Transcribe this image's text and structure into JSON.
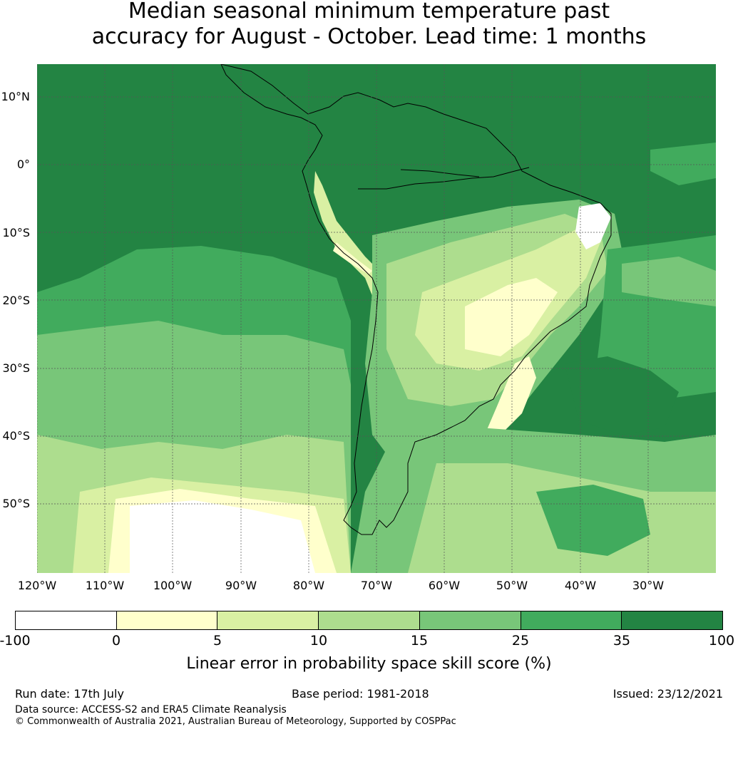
{
  "title": {
    "line1": "Median seasonal minimum temperature past",
    "line2": "accuracy for August - October. Lead time: 1 months"
  },
  "map": {
    "lat_labels": [
      "10°N",
      "0°",
      "10°S",
      "20°S",
      "30°S",
      "40°S",
      "50°S"
    ],
    "lon_labels": [
      "120°W",
      "110°W",
      "100°W",
      "90°W",
      "80°W",
      "70°W",
      "60°W",
      "50°W",
      "40°W",
      "30°W"
    ],
    "region": "South America",
    "colors": {
      "ocean_dominant": "#238443",
      "land_outline": "#000000",
      "gridline": "#555555"
    }
  },
  "colorbar": {
    "label": "Linear error in probability space skill score (%)",
    "ticks": [
      "-100",
      "0",
      "5",
      "10",
      "15",
      "25",
      "35",
      "100"
    ],
    "colors": [
      "#ffffff",
      "#ffffcc",
      "#d9f0a3",
      "#addd8e",
      "#78c679",
      "#41ab5d",
      "#238443"
    ]
  },
  "footer": {
    "run_date": "Run date: 17th July",
    "base_period": "Base period: 1981-2018",
    "issued": "Issued: 23/12/2021",
    "data_source": "Data source: ACCESS-S2 and ERA5 Climate Reanalysis",
    "copyright": "© Commonwealth of Australia 2021, Australian Bureau of Meteorology, Supported by COSPPac"
  }
}
